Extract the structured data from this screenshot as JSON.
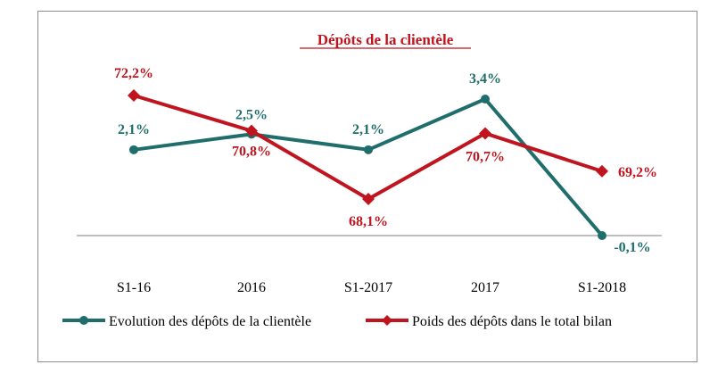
{
  "chart_data": {
    "type": "line",
    "title": "Dépôts de  la clientèle",
    "categories": [
      "S1-16",
      "2016",
      "S1-2017",
      "2017",
      "S1-2018"
    ],
    "legend_position": "bottom",
    "grid": false,
    "title_color": "#c0141e",
    "series": [
      {
        "name": "Evolution des dépôts de la clientèle",
        "axis": "left",
        "values": [
          2.1,
          2.5,
          2.1,
          3.4,
          -0.1
        ],
        "labels": [
          "2,1%",
          "2,5%",
          "2,1%",
          "3,4%",
          "-0,1%"
        ],
        "color": "#1f6e6b",
        "marker": "circle",
        "ylim": [
          -0.1,
          3.4
        ]
      },
      {
        "name": "Poids des dépôts dans le total bilan",
        "axis": "right",
        "values": [
          72.2,
          70.8,
          68.1,
          70.7,
          69.2
        ],
        "labels": [
          "72,2%",
          "70,8%",
          "68,1%",
          "70,7%",
          "69,2%"
        ],
        "color": "#c0141e",
        "marker": "diamond",
        "ylim": [
          68.1,
          72.2
        ]
      }
    ]
  }
}
